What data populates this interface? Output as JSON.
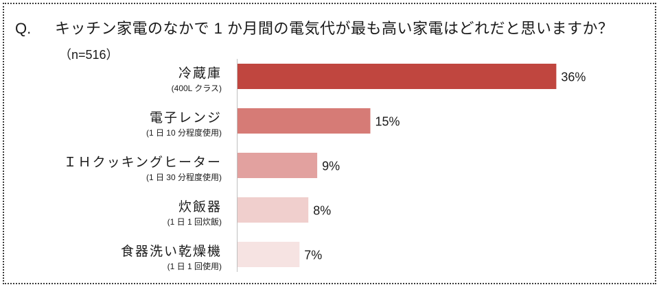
{
  "chart_data": {
    "type": "bar",
    "orientation": "horizontal",
    "title_prefix": "Q.",
    "title": "キッチン家電のなかで 1 か月間の電気代が最も高い家電はどれだと思いますか？",
    "subtitle": "（n=516）",
    "categories": [
      "冷蔵庫",
      "電子レンジ",
      "ＩＨクッキングヒーター",
      "炊飯器",
      "食器洗い乾燥機"
    ],
    "sublabels": [
      "(400L クラス)",
      "(1 日 10 分程度使用)",
      "(1 日 30 分程度使用)",
      "(1 日 1 回炊飯)",
      "(1 日 1 回使用)"
    ],
    "values": [
      36,
      15,
      9,
      8,
      7
    ],
    "value_labels": [
      "36%",
      "15%",
      "9%",
      "8%",
      "7%"
    ],
    "colors": [
      "#c0463f",
      "#d67b76",
      "#e2a19f",
      "#f0cfcd",
      "#f6e3e2"
    ],
    "axis_color": "#bfbfbf",
    "grid": false,
    "legend": "none"
  }
}
